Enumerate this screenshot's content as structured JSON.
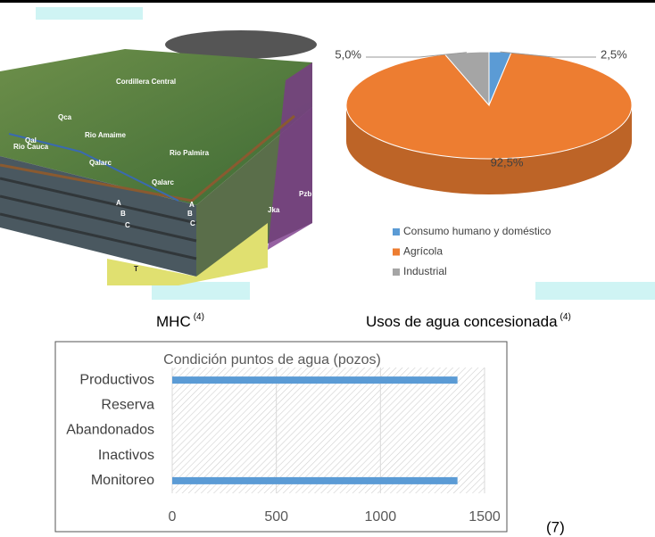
{
  "chart_data": [
    {
      "type": "pie",
      "series": [
        {
          "name": "Consumo humano y doméstico",
          "color": "#5b9bd5"
        },
        {
          "name": "Agrícola",
          "color": "#ed7d31"
        },
        {
          "name": "Industrial",
          "color": "#a5a5a5"
        }
      ],
      "values": [
        2.5,
        92.5,
        5.0
      ],
      "value_labels": [
        "2,5%",
        "92,5%",
        "5,0%"
      ],
      "legend": "bottom"
    },
    {
      "type": "bar",
      "title": "Condición puntos de agua (pozos)",
      "orientation": "horizontal",
      "categories": [
        "Productivos",
        "Reserva",
        "Abandonados",
        "Inactivos",
        "Monitoreo"
      ],
      "values": [
        1370,
        0,
        0,
        0,
        1370
      ],
      "color": "#5b9bd5",
      "xlim": [
        0,
        1500
      ],
      "xticks": [
        0,
        500,
        1000,
        1500
      ],
      "grid": true
    }
  ],
  "captions": {
    "illustration": {
      "text": "MHC",
      "note": "(4)"
    },
    "pie": {
      "text": "Usos de agua concesionada",
      "note": "(4)"
    },
    "bar_source": "(7)"
  },
  "illustration": {
    "labels": [
      "Cordillera Central",
      "Qca",
      "Qal",
      "Rio Amaime",
      "Rio Cauca",
      "Qalarc",
      "Rio Palmira",
      "Qalarc",
      "A",
      "B",
      "C",
      "A",
      "B",
      "C",
      "Jka",
      "Pzb",
      "T"
    ]
  }
}
